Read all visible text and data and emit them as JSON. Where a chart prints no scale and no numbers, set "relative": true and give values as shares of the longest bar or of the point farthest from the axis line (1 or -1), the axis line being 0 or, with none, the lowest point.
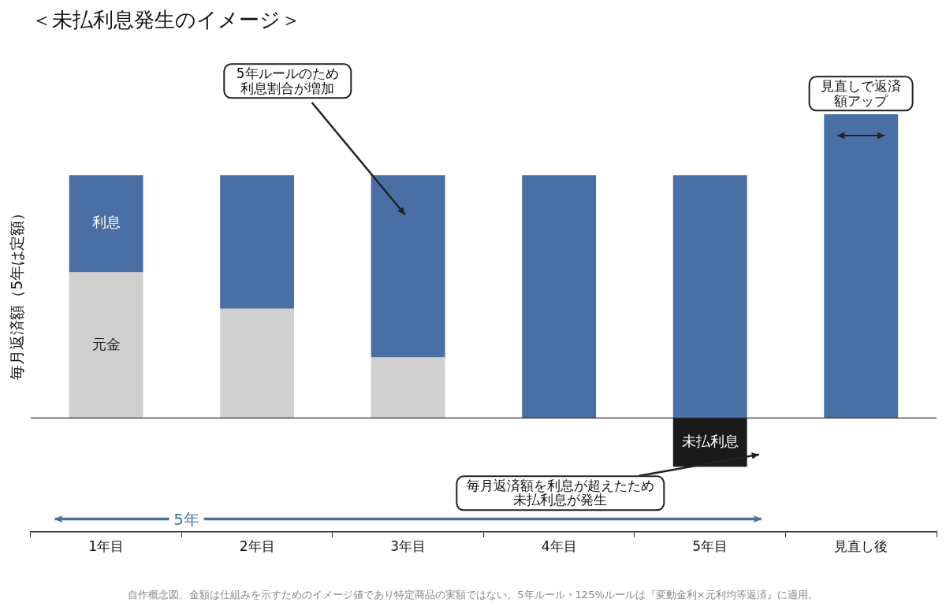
{
  "chart_data": {
    "type": "bar",
    "title": "＜未払利息発生のイメージ＞",
    "ylabel": "毎月返済額（5年は定額）",
    "categories": [
      "1年目",
      "2年目",
      "3年目",
      "4年目",
      "5年目",
      "見直し後"
    ],
    "stacked": true,
    "relative": true,
    "legend": false,
    "grid": false,
    "series": [
      {
        "name": "元金",
        "color": "#d0d0d0",
        "values": [
          0.48,
          0.36,
          0.2,
          null,
          null,
          null
        ]
      },
      {
        "name": "利息",
        "color": "#4a6fa5",
        "values": [
          0.32,
          0.44,
          0.6,
          0.8,
          0.8,
          1
        ]
      },
      {
        "name": "未払利息",
        "color": "#1a1a1a",
        "values": [
          null,
          null,
          null,
          null,
          -0.16,
          null
        ]
      }
    ],
    "annotations": [
      "5年ルールのため利息割合が増加",
      "見直しで返済額アップ",
      "毎月返済額を利息が超えたため未払利息が発生",
      "5年",
      "自作概念図。金額は仕組みを示すためのイメージ値であり特定商品の実額ではない。5年ルール・125%ルールは『変動金利×元利均等返済』に適用。"
    ]
  }
}
